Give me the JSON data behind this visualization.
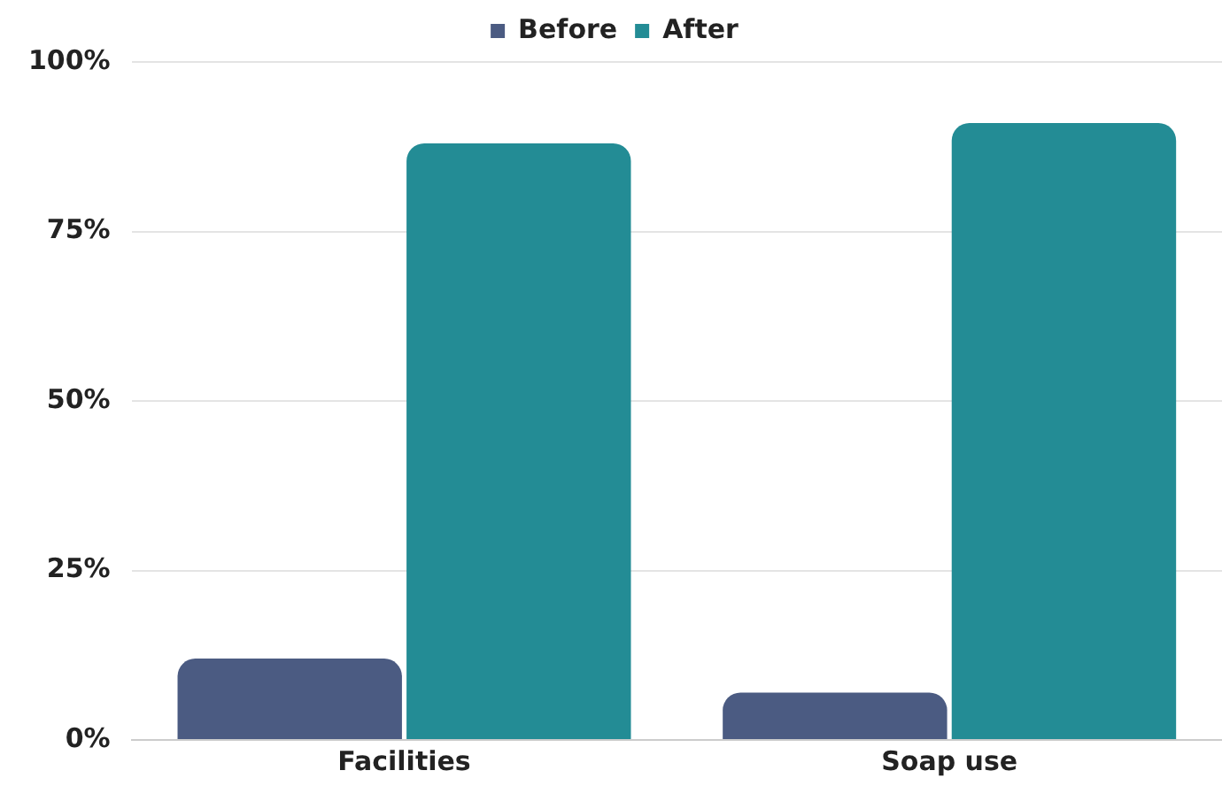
{
  "chart_data": {
    "type": "bar",
    "categories": [
      "Facilities",
      "Soap use"
    ],
    "series": [
      {
        "name": "Before",
        "color": "#4b5b82",
        "values": [
          12,
          7
        ]
      },
      {
        "name": "After",
        "color": "#238c95",
        "values": [
          88,
          91
        ]
      }
    ],
    "ylim": [
      0,
      100
    ],
    "yticks": [
      {
        "value": 0,
        "label": "0%"
      },
      {
        "value": 25,
        "label": "25%"
      },
      {
        "value": 50,
        "label": "50%"
      },
      {
        "value": 75,
        "label": "75%"
      },
      {
        "value": 100,
        "label": "100%"
      }
    ],
    "grid": "y",
    "legend": "top"
  }
}
